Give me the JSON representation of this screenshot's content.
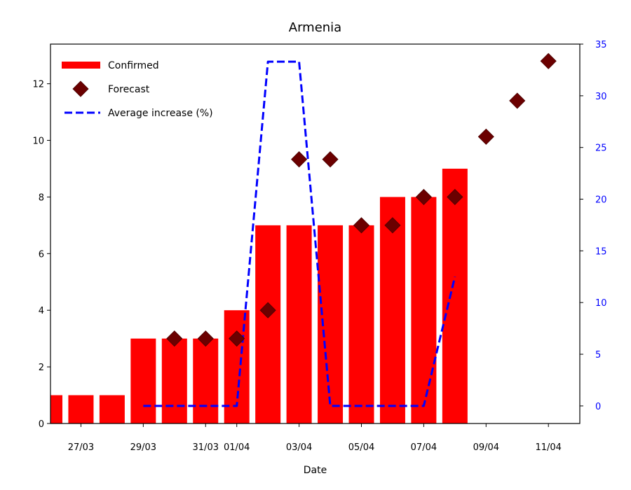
{
  "chart_data": {
    "type": "bar",
    "title": "Armenia",
    "xlabel": "Date",
    "ylabel": "",
    "y2label": "",
    "ylim": [
      0,
      13.4
    ],
    "y2lim": [
      -1.7,
      35
    ],
    "ytick_labels": [
      "0",
      "2",
      "4",
      "6",
      "8",
      "10",
      "12"
    ],
    "ytick_values": [
      0,
      2,
      4,
      6,
      8,
      10,
      12
    ],
    "y2tick_labels": [
      "0",
      "5",
      "10",
      "15",
      "20",
      "25",
      "30",
      "35"
    ],
    "y2tick_values": [
      0,
      5,
      10,
      15,
      20,
      25,
      30,
      35
    ],
    "dates": [
      "26/03",
      "27/03",
      "28/03",
      "29/03",
      "30/03",
      "31/03",
      "01/04",
      "02/04",
      "03/04",
      "04/04",
      "05/04",
      "06/04",
      "07/04",
      "08/04",
      "09/04",
      "10/04",
      "11/04"
    ],
    "xtick_labels": [
      "27/03",
      "29/03",
      "31/03",
      "01/04",
      "03/04",
      "05/04",
      "07/04",
      "09/04",
      "11/04"
    ],
    "xtick_dates": [
      "27/03",
      "29/03",
      "31/03",
      "01/04",
      "03/04",
      "05/04",
      "07/04",
      "09/04",
      "11/04"
    ],
    "series": [
      {
        "name": "Confirmed",
        "kind": "bar",
        "color": "#ff0000",
        "x": [
          "26/03",
          "27/03",
          "28/03",
          "29/03",
          "30/03",
          "31/03",
          "01/04",
          "02/04",
          "03/04",
          "04/04",
          "05/04",
          "06/04",
          "07/04",
          "08/04"
        ],
        "values": [
          1,
          1,
          1,
          3,
          3,
          3,
          4,
          7,
          7,
          7,
          7,
          8,
          8,
          9
        ]
      },
      {
        "name": "Forecast",
        "kind": "scatter",
        "marker": "diamond",
        "color": "#6b0000",
        "x": [
          "30/03",
          "31/03",
          "01/04",
          "02/04",
          "03/04",
          "04/04",
          "05/04",
          "06/04",
          "07/04",
          "08/04",
          "09/04",
          "10/04",
          "11/04"
        ],
        "values": [
          3,
          3,
          3,
          4,
          9.33,
          9.33,
          7,
          7,
          8,
          8,
          10.13,
          11.4,
          12.8
        ]
      },
      {
        "name": "Average increase (%)",
        "kind": "line",
        "style": "dashed",
        "axis": "right",
        "color": "#0000ff",
        "x": [
          "29/03",
          "30/03",
          "31/03",
          "01/04",
          "02/04",
          "03/04",
          "04/04",
          "05/04",
          "06/04",
          "07/04",
          "08/04"
        ],
        "values": [
          0,
          0,
          0,
          0,
          33.3,
          33.3,
          0,
          0,
          0,
          0,
          12.5
        ]
      }
    ],
    "legend": {
      "position": "upper-left",
      "frameless": true
    },
    "grid": false
  }
}
